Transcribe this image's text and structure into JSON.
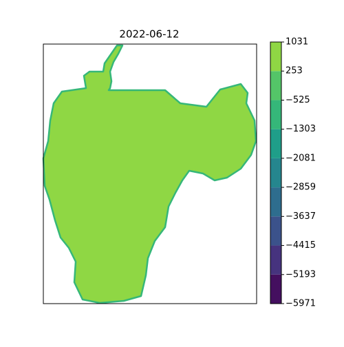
{
  "chart_data": {
    "type": "contour-map",
    "title": "2022-06-12",
    "levels": [
      {
        "value": -5971,
        "label": "−5971"
      },
      {
        "value": -5193,
        "label": "−5193"
      },
      {
        "value": -4415,
        "label": "−4415"
      },
      {
        "value": -3637,
        "label": "−3637"
      },
      {
        "value": -2859,
        "label": "−2859"
      },
      {
        "value": -2081,
        "label": "−2081"
      },
      {
        "value": -1303,
        "label": "−1303"
      },
      {
        "value": -525,
        "label": "−525"
      },
      253,
      1031
    ],
    "colors": [
      "#440f5f",
      "#46337e",
      "#3b528b",
      "#2e6d8e",
      "#25868e",
      "#1f9e89",
      "#35b779",
      "#54c568",
      "#8fd744",
      "#dde318"
    ],
    "fill_color": "#8fd744",
    "edge_color": "#35b779"
  }
}
